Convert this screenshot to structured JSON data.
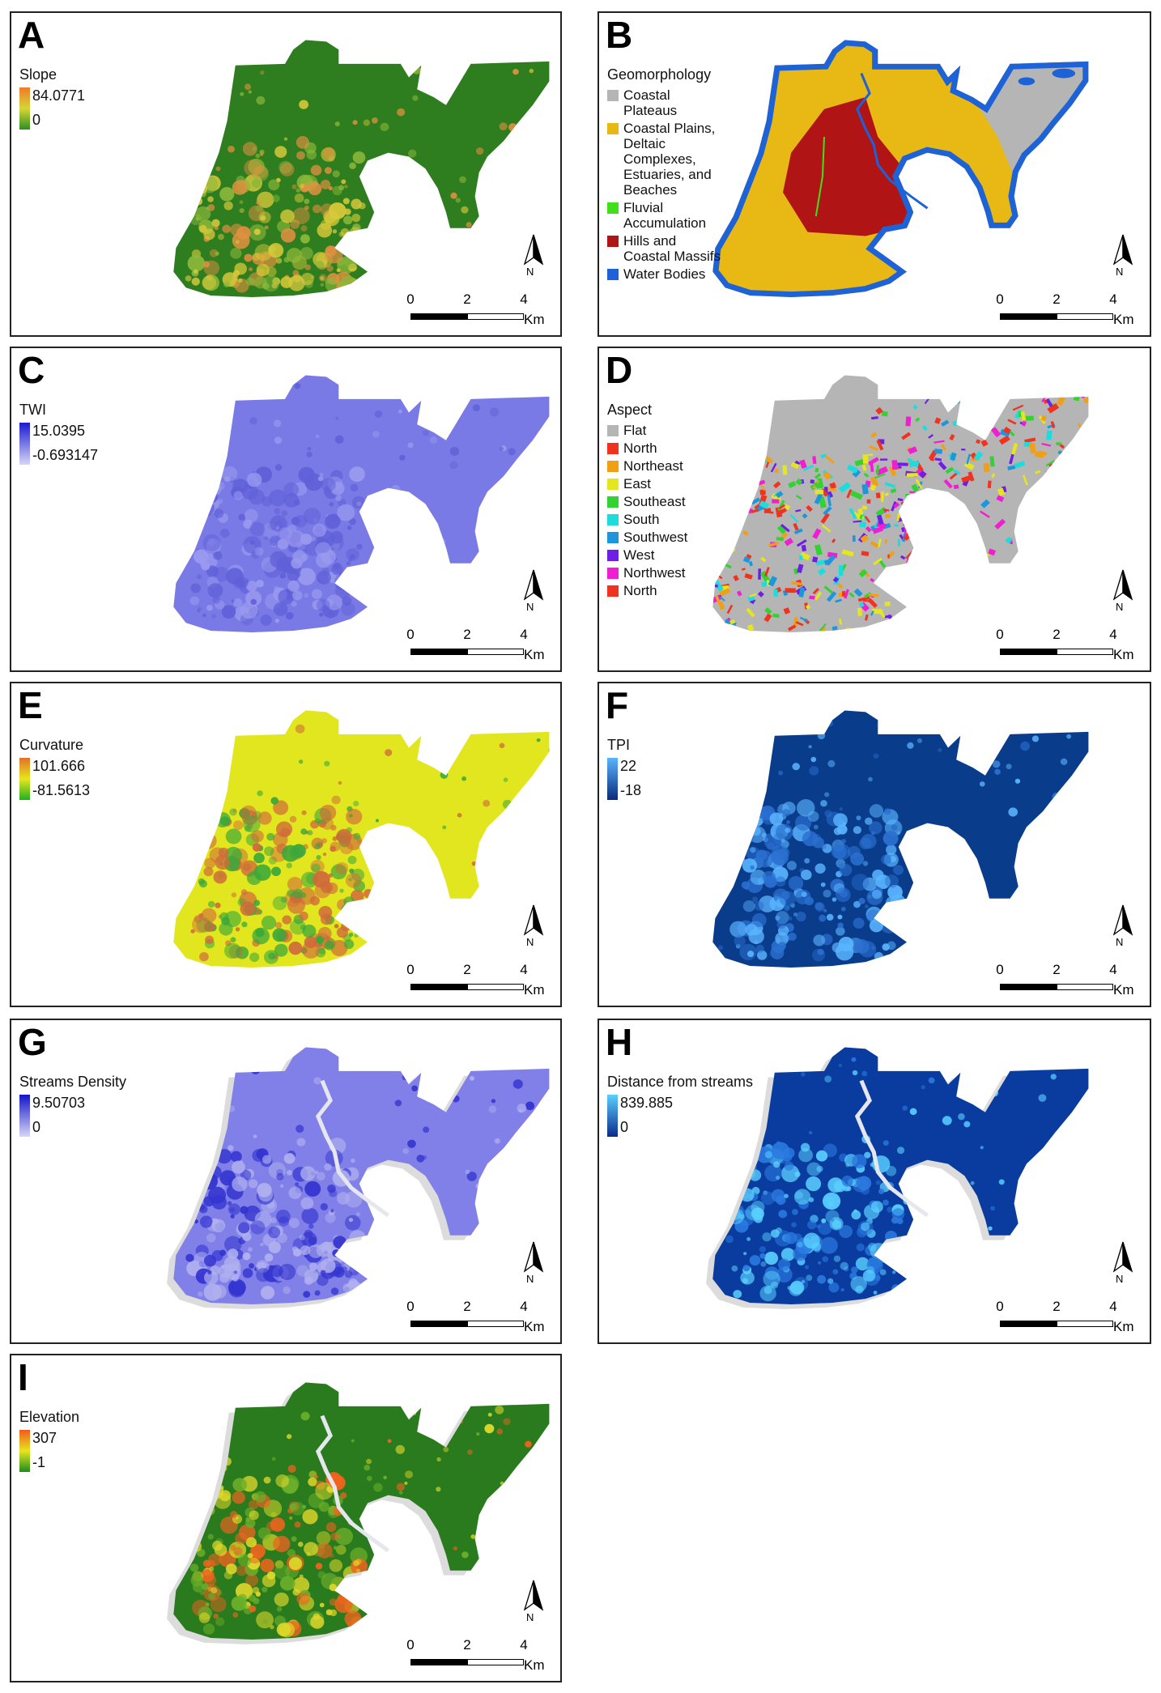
{
  "panels": [
    {
      "letter": "A",
      "legend_type": "ramp",
      "legend_title": "Slope",
      "ramp_max": "84.0771",
      "ramp_min": "0",
      "ramp_colors": [
        "#f07a2a",
        "#d6d636",
        "#2d8f22"
      ],
      "map_base": "#2e7d1f",
      "map_accents": [
        "#d8c93a",
        "#e09040",
        "#8cb83a"
      ],
      "scale_ticks": [
        "0",
        "2",
        "4"
      ],
      "scale_unit": "Km",
      "north_label": "N"
    },
    {
      "letter": "B",
      "legend_type": "categorical",
      "legend_title": "Geomorphology",
      "categories": [
        {
          "label": "Coastal Plateaus",
          "color": "#b5b5b5"
        },
        {
          "label": "Coastal Plains, Deltaic Complexes, Estuaries, and Beaches",
          "color": "#e8b814"
        },
        {
          "label": "Fluvial Accumulation",
          "color": "#3fe01a"
        },
        {
          "label": "Hills and Coastal Massifs",
          "color": "#b01414"
        },
        {
          "label": "Water Bodies",
          "color": "#1e62d8"
        }
      ],
      "scale_ticks": [
        "0",
        "2",
        "4"
      ],
      "scale_unit": "Km",
      "north_label": "N"
    },
    {
      "letter": "C",
      "legend_type": "ramp",
      "legend_title": "TWI",
      "ramp_max": "15.0395",
      "ramp_min": "-0.693147",
      "ramp_colors": [
        "#1a1ad0",
        "#d6d6f7"
      ],
      "map_base": "#7a7ae6",
      "map_accents": [
        "#9a9af0",
        "#6060d8"
      ],
      "scale_ticks": [
        "0",
        "2",
        "4"
      ],
      "scale_unit": "Km",
      "north_label": "N"
    },
    {
      "letter": "D",
      "legend_type": "categorical",
      "legend_title": "Aspect",
      "categories": [
        {
          "label": "Flat",
          "color": "#b5b5b5"
        },
        {
          "label": "North",
          "color": "#f0321e"
        },
        {
          "label": "Northeast",
          "color": "#f0a014"
        },
        {
          "label": "East",
          "color": "#e6e61e"
        },
        {
          "label": "Southeast",
          "color": "#32d232"
        },
        {
          "label": "South",
          "color": "#1edcdc"
        },
        {
          "label": "Southwest",
          "color": "#1e96dc"
        },
        {
          "label": "West",
          "color": "#6e1ee6"
        },
        {
          "label": "Northwest",
          "color": "#f01ed2"
        },
        {
          "label": "North",
          "color": "#f0321e"
        }
      ],
      "scale_ticks": [
        "0",
        "2",
        "4"
      ],
      "scale_unit": "Km",
      "north_label": "N"
    },
    {
      "letter": "E",
      "legend_type": "ramp",
      "legend_title": "Curvature",
      "ramp_max": "101.666",
      "ramp_min": "-81.5613",
      "ramp_colors": [
        "#e0702a",
        "#e6e61e",
        "#20b020"
      ],
      "map_base": "#e2e61e",
      "map_accents": [
        "#3aa83a",
        "#d06a3a"
      ],
      "scale_ticks": [
        "0",
        "2",
        "4"
      ],
      "scale_unit": "Km",
      "north_label": "N"
    },
    {
      "letter": "F",
      "legend_type": "ramp",
      "legend_title": "TPI",
      "ramp_max": "22",
      "ramp_min": "-18",
      "ramp_colors": [
        "#5ab4ff",
        "#0a2a78"
      ],
      "map_base": "#0a3c8c",
      "map_accents": [
        "#2a70d0",
        "#5ab4ff"
      ],
      "scale_ticks": [
        "0",
        "2",
        "4"
      ],
      "scale_unit": "Km",
      "north_label": "N"
    },
    {
      "letter": "G",
      "legend_type": "ramp",
      "legend_title": "Streams Density",
      "ramp_max": "9.50703",
      "ramp_min": "0",
      "ramp_colors": [
        "#1414c8",
        "#d6d6f7"
      ],
      "map_base": "#8080e8",
      "map_accents": [
        "#3434d0",
        "#b0b0f0"
      ],
      "scale_ticks": [
        "0",
        "2",
        "4"
      ],
      "scale_unit": "Km",
      "north_label": "N"
    },
    {
      "letter": "H",
      "legend_type": "ramp",
      "legend_title": "Distance from streams",
      "ramp_max": "839.885",
      "ramp_min": "0",
      "ramp_colors": [
        "#5ad0ff",
        "#0a2a8c"
      ],
      "map_base": "#0a3ca0",
      "map_accents": [
        "#2a7ae0",
        "#5ad0ff"
      ],
      "scale_ticks": [
        "0",
        "2",
        "4"
      ],
      "scale_unit": "Km",
      "north_label": "N"
    },
    {
      "letter": "I",
      "legend_type": "ramp",
      "legend_title": "Elevation",
      "ramp_max": "307",
      "ramp_min": "-1",
      "ramp_colors": [
        "#f05a1e",
        "#e6e61e",
        "#1e8c1e"
      ],
      "map_base": "#2a7a1e",
      "map_accents": [
        "#e0d82a",
        "#f0641e",
        "#6cb02a"
      ],
      "scale_ticks": [
        "0",
        "2",
        "4"
      ],
      "scale_unit": "Km",
      "north_label": "N"
    }
  ]
}
